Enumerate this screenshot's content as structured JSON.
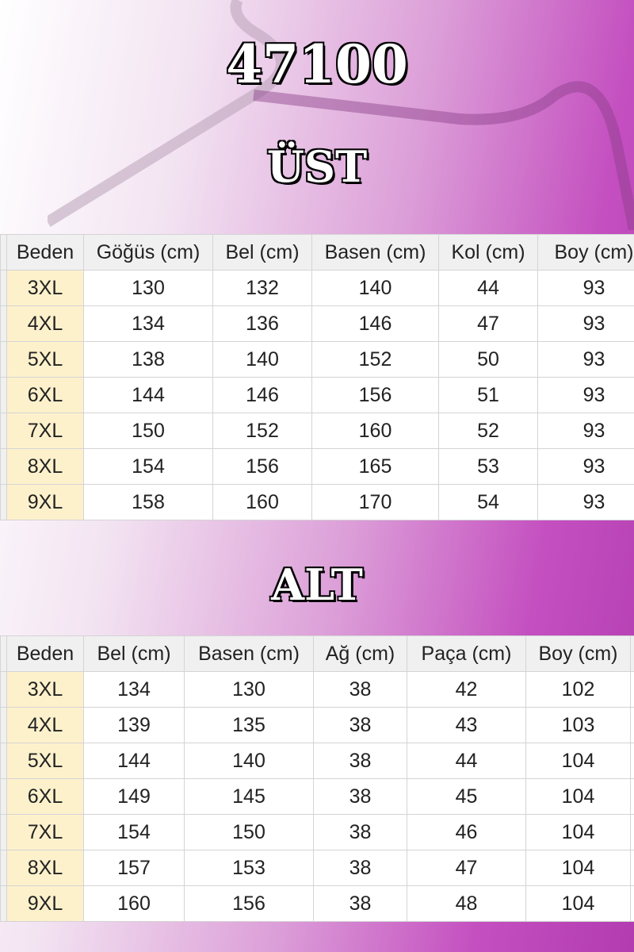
{
  "title": "47100",
  "top_section": {
    "heading": "ÜST",
    "columns": [
      "Beden",
      "Göğüs (cm)",
      "Bel (cm)",
      "Basen (cm)",
      "Kol (cm)",
      "Boy (cm)"
    ],
    "rows": [
      [
        "3XL",
        "130",
        "132",
        "140",
        "44",
        "93"
      ],
      [
        "4XL",
        "134",
        "136",
        "146",
        "47",
        "93"
      ],
      [
        "5XL",
        "138",
        "140",
        "152",
        "50",
        "93"
      ],
      [
        "6XL",
        "144",
        "146",
        "156",
        "51",
        "93"
      ],
      [
        "7XL",
        "150",
        "152",
        "160",
        "52",
        "93"
      ],
      [
        "8XL",
        "154",
        "156",
        "165",
        "53",
        "93"
      ],
      [
        "9XL",
        "158",
        "160",
        "170",
        "54",
        "93"
      ]
    ]
  },
  "bottom_section": {
    "heading": "ALT",
    "columns": [
      "Beden",
      "Bel (cm)",
      "Basen (cm)",
      "Ağ (cm)",
      "Paça (cm)",
      "Boy (cm)"
    ],
    "rows": [
      [
        "3XL",
        "134",
        "130",
        "38",
        "42",
        "102"
      ],
      [
        "4XL",
        "139",
        "135",
        "38",
        "43",
        "103"
      ],
      [
        "5XL",
        "144",
        "140",
        "38",
        "44",
        "104"
      ],
      [
        "6XL",
        "149",
        "145",
        "38",
        "45",
        "104"
      ],
      [
        "7XL",
        "154",
        "150",
        "38",
        "46",
        "104"
      ],
      [
        "8XL",
        "157",
        "153",
        "38",
        "47",
        "104"
      ],
      [
        "9XL",
        "160",
        "156",
        "38",
        "48",
        "104"
      ]
    ]
  },
  "colors": {
    "size_cell": "#fdf1cc",
    "header_cell": "#f0f0f0",
    "background_accent": "#c44fc0"
  }
}
